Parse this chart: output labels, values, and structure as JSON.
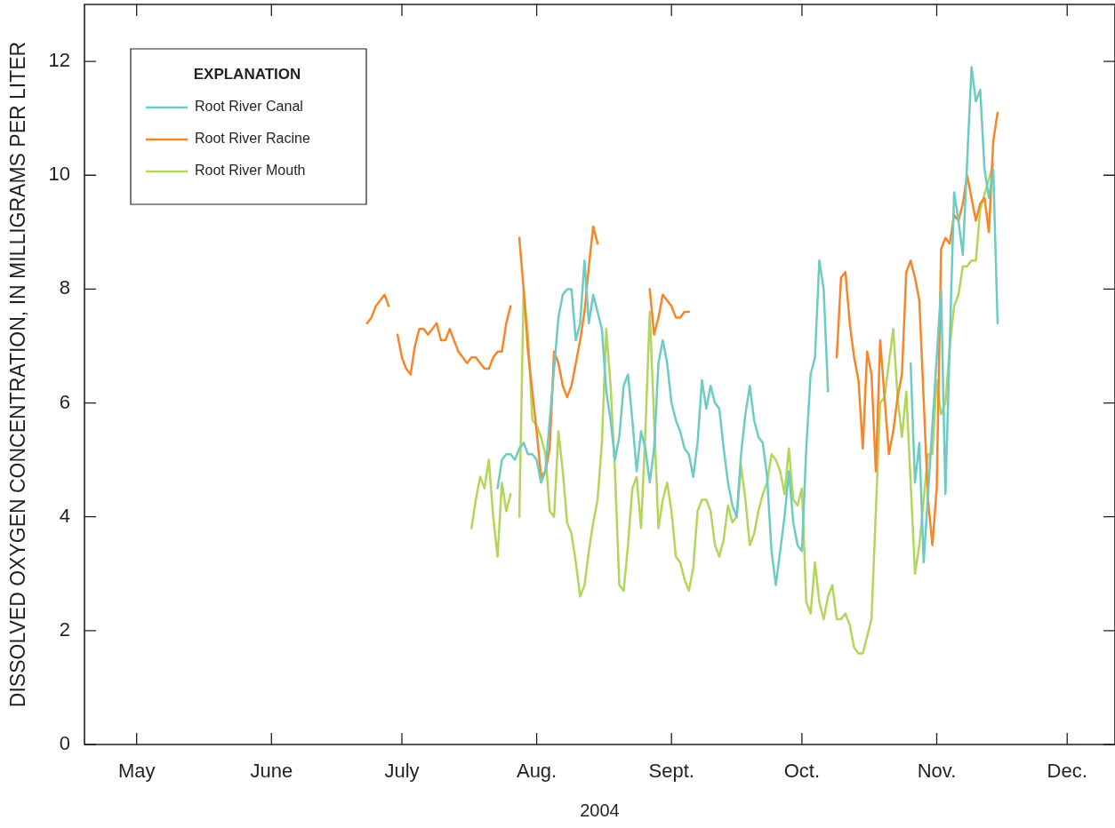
{
  "chart_data": {
    "type": "line",
    "xlabel": "2004",
    "ylabel": "DISSOLVED OXYGEN CONCENTRATION, IN MILLIGRAMS PER LITER",
    "legend": "top left",
    "legend_title": "EXPLANATION",
    "xlim": [
      "2004-04-19",
      "2004-12-12"
    ],
    "xticks": [
      {
        "value": "2004-05-01",
        "label": "May"
      },
      {
        "value": "2004-06-01",
        "label": "June"
      },
      {
        "value": "2004-07-01",
        "label": "July"
      },
      {
        "value": "2004-08-01",
        "label": "Aug."
      },
      {
        "value": "2004-09-01",
        "label": "Sept."
      },
      {
        "value": "2004-10-01",
        "label": "Oct."
      },
      {
        "value": "2004-11-01",
        "label": "Nov."
      },
      {
        "value": "2004-12-01",
        "label": "Dec."
      }
    ],
    "ylim": [
      0,
      13
    ],
    "yticks": [
      0,
      2,
      4,
      6,
      8,
      10,
      12
    ],
    "series": [
      {
        "name": "Root River Canal",
        "color": "#6dcbc3",
        "x": [
          "2004-07-23",
          "2004-07-24",
          "2004-07-25",
          "2004-07-26",
          "2004-07-27",
          "2004-07-28",
          "2004-07-29",
          "2004-07-30",
          "2004-07-31",
          "2004-08-01",
          "2004-08-02",
          "2004-08-03",
          "2004-08-06",
          "2004-08-07",
          "2004-08-08",
          "2004-08-09",
          "2004-08-10",
          "2004-08-11",
          "2004-08-12",
          "2004-08-13",
          "2004-08-14",
          "2004-08-15",
          "2004-08-16",
          "2004-08-17",
          "2004-08-18",
          "2004-08-19",
          "2004-08-20",
          "2004-08-21",
          "2004-08-22",
          "2004-08-23",
          "2004-08-24",
          "2004-08-25",
          "2004-08-26",
          "2004-08-27",
          "2004-08-28",
          "2004-08-29",
          "2004-08-30",
          "2004-08-31",
          "2004-09-01",
          "2004-09-02",
          "2004-09-03",
          "2004-09-04",
          "2004-09-05",
          "2004-09-06",
          "2004-09-07",
          "2004-09-08",
          "2004-09-09",
          "2004-09-10",
          "2004-09-11",
          "2004-09-12",
          "2004-09-13",
          "2004-09-14",
          "2004-09-15",
          "2004-09-16",
          "2004-09-17",
          "2004-09-18",
          "2004-09-19",
          "2004-09-20",
          "2004-09-21",
          "2004-09-22",
          "2004-09-23",
          "2004-09-24",
          "2004-09-25",
          "2004-09-26",
          "2004-09-27",
          "2004-09-28",
          "2004-09-29",
          "2004-09-30",
          "2004-10-01",
          "2004-10-02",
          "2004-10-03",
          "2004-10-04",
          "2004-10-05",
          "2004-10-06",
          "2004-10-07",
          "2004-10-08",
          "2004-10-26",
          "2004-10-27",
          "2004-10-28",
          "2004-10-29",
          "2004-11-02",
          "2004-11-03",
          "2004-11-05",
          "2004-11-06",
          "2004-11-07",
          "2004-11-09",
          "2004-11-10",
          "2004-11-11",
          "2004-11-12",
          "2004-11-13",
          "2004-11-14",
          "2004-11-15"
        ],
        "values": [
          4.5,
          5.0,
          5.1,
          5.1,
          5.0,
          5.2,
          5.3,
          5.1,
          5.1,
          5.0,
          4.6,
          4.8,
          7.5,
          7.9,
          8.0,
          8.0,
          7.1,
          7.4,
          8.5,
          7.4,
          7.9,
          7.6,
          7.3,
          6.2,
          5.7,
          5.0,
          5.4,
          6.3,
          6.5,
          5.7,
          4.8,
          5.5,
          5.2,
          4.6,
          5.2,
          6.7,
          7.1,
          6.7,
          6.0,
          5.7,
          5.5,
          5.2,
          5.1,
          4.7,
          5.3,
          6.4,
          5.9,
          6.3,
          6.0,
          5.9,
          5.2,
          4.6,
          4.2,
          4.0,
          5.1,
          5.8,
          6.3,
          5.7,
          5.4,
          5.3,
          4.7,
          3.4,
          2.8,
          3.4,
          4.0,
          4.8,
          3.9,
          3.5,
          3.4,
          5.2,
          6.5,
          6.8,
          8.5,
          8.0,
          6.2,
          null,
          6.7,
          4.6,
          5.3,
          3.2,
          8.0,
          4.4,
          9.7,
          9.2,
          8.6,
          11.9,
          11.3,
          11.5,
          10.1,
          9.6,
          10.1,
          7.4
        ]
      },
      {
        "name": "Root River Racine",
        "color": "#f5862a",
        "x": [
          "2004-06-23",
          "2004-06-24",
          "2004-06-25",
          "2004-06-26",
          "2004-06-27",
          "2004-06-28",
          "2004-06-29",
          "2004-06-30",
          "2004-07-01",
          "2004-07-02",
          "2004-07-03",
          "2004-07-04",
          "2004-07-05",
          "2004-07-06",
          "2004-07-07",
          "2004-07-08",
          "2004-07-09",
          "2004-07-10",
          "2004-07-11",
          "2004-07-12",
          "2004-07-13",
          "2004-07-14",
          "2004-07-15",
          "2004-07-16",
          "2004-07-17",
          "2004-07-18",
          "2004-07-19",
          "2004-07-20",
          "2004-07-21",
          "2004-07-22",
          "2004-07-23",
          "2004-07-24",
          "2004-07-25",
          "2004-07-26",
          "2004-07-27",
          "2004-07-28",
          "2004-07-29",
          "2004-07-30",
          "2004-07-31",
          "2004-08-01",
          "2004-08-02",
          "2004-08-03",
          "2004-08-04",
          "2004-08-05",
          "2004-08-06",
          "2004-08-07",
          "2004-08-08",
          "2004-08-09",
          "2004-08-10",
          "2004-08-11",
          "2004-08-12",
          "2004-08-13",
          "2004-08-14",
          "2004-08-15",
          "2004-08-16",
          "2004-08-27",
          "2004-08-28",
          "2004-08-29",
          "2004-08-30",
          "2004-08-31",
          "2004-09-01",
          "2004-09-02",
          "2004-09-03",
          "2004-09-04",
          "2004-09-05",
          "2004-09-06",
          "2004-10-09",
          "2004-10-10",
          "2004-10-11",
          "2004-10-12",
          "2004-10-13",
          "2004-10-14",
          "2004-10-15",
          "2004-10-16",
          "2004-10-17",
          "2004-10-18",
          "2004-10-19",
          "2004-10-21",
          "2004-10-22",
          "2004-10-23",
          "2004-10-24",
          "2004-10-25",
          "2004-10-26",
          "2004-10-27",
          "2004-10-28",
          "2004-10-30",
          "2004-10-31",
          "2004-11-01",
          "2004-11-02",
          "2004-11-03",
          "2004-11-04",
          "2004-11-05",
          "2004-11-06",
          "2004-11-07",
          "2004-11-08",
          "2004-11-09",
          "2004-11-10",
          "2004-11-11",
          "2004-11-12",
          "2004-11-13",
          "2004-11-14",
          "2004-11-15"
        ],
        "values": [
          7.4,
          7.5,
          7.7,
          7.8,
          7.9,
          7.7,
          null,
          7.2,
          6.8,
          6.6,
          6.5,
          7.0,
          7.3,
          7.3,
          7.2,
          7.3,
          7.4,
          7.1,
          7.1,
          7.3,
          7.1,
          6.9,
          6.8,
          6.7,
          6.8,
          6.8,
          6.7,
          6.6,
          6.6,
          6.8,
          6.9,
          6.9,
          7.4,
          7.7,
          null,
          8.9,
          8.0,
          6.9,
          6.2,
          5.5,
          4.7,
          4.8,
          5.2,
          6.9,
          6.7,
          6.3,
          6.1,
          6.3,
          6.7,
          7.1,
          7.6,
          8.4,
          9.1,
          8.8,
          null,
          8.0,
          7.2,
          7.5,
          7.9,
          7.8,
          7.7,
          7.5,
          7.5,
          7.6,
          7.6,
          null,
          6.8,
          8.2,
          8.3,
          7.4,
          6.8,
          6.4,
          5.2,
          6.9,
          6.5,
          4.8,
          7.1,
          5.1,
          5.5,
          6.1,
          6.5,
          8.3,
          8.5,
          8.2,
          7.8,
          4.3,
          3.5,
          4.5,
          8.7,
          8.9,
          8.8,
          9.3,
          9.2,
          9.5,
          10.0,
          9.6,
          9.2,
          9.5,
          9.6,
          9.0,
          10.6,
          11.1
        ]
      },
      {
        "name": "Root River Mouth",
        "color": "#b2d65a",
        "x": [
          "2004-07-17",
          "2004-07-18",
          "2004-07-19",
          "2004-07-20",
          "2004-07-21",
          "2004-07-22",
          "2004-07-23",
          "2004-07-24",
          "2004-07-25",
          "2004-07-26",
          "2004-07-27",
          "2004-07-28",
          "2004-07-29",
          "2004-07-30",
          "2004-07-31",
          "2004-08-01",
          "2004-08-02",
          "2004-08-03",
          "2004-08-04",
          "2004-08-05",
          "2004-08-06",
          "2004-08-07",
          "2004-08-08",
          "2004-08-09",
          "2004-08-10",
          "2004-08-11",
          "2004-08-12",
          "2004-08-13",
          "2004-08-14",
          "2004-08-15",
          "2004-08-16",
          "2004-08-17",
          "2004-08-18",
          "2004-08-19",
          "2004-08-20",
          "2004-08-21",
          "2004-08-22",
          "2004-08-23",
          "2004-08-24",
          "2004-08-25",
          "2004-08-26",
          "2004-08-27",
          "2004-08-29",
          "2004-08-30",
          "2004-08-31",
          "2004-09-01",
          "2004-09-02",
          "2004-09-03",
          "2004-09-04",
          "2004-09-05",
          "2004-09-06",
          "2004-09-07",
          "2004-09-08",
          "2004-09-09",
          "2004-09-10",
          "2004-09-11",
          "2004-09-12",
          "2004-09-13",
          "2004-09-14",
          "2004-09-15",
          "2004-09-16",
          "2004-09-17",
          "2004-09-18",
          "2004-09-19",
          "2004-09-20",
          "2004-09-21",
          "2004-09-22",
          "2004-09-23",
          "2004-09-24",
          "2004-09-25",
          "2004-09-26",
          "2004-09-27",
          "2004-09-28",
          "2004-09-29",
          "2004-09-30",
          "2004-10-01",
          "2004-10-02",
          "2004-10-03",
          "2004-10-04",
          "2004-10-05",
          "2004-10-06",
          "2004-10-07",
          "2004-10-08",
          "2004-10-09",
          "2004-10-10",
          "2004-10-11",
          "2004-10-12",
          "2004-10-13",
          "2004-10-14",
          "2004-10-15",
          "2004-10-16",
          "2004-10-17",
          "2004-10-19",
          "2004-10-20",
          "2004-10-21",
          "2004-10-22",
          "2004-10-23",
          "2004-10-24",
          "2004-10-25",
          "2004-10-27",
          "2004-10-28",
          "2004-10-30",
          "2004-10-31",
          "2004-11-01",
          "2004-11-02",
          "2004-11-03",
          "2004-11-04",
          "2004-11-05",
          "2004-11-06",
          "2004-11-07",
          "2004-11-08",
          "2004-11-09",
          "2004-11-10",
          "2004-11-11",
          "2004-11-14"
        ],
        "values": [
          3.8,
          4.3,
          4.7,
          4.5,
          5.0,
          4.0,
          3.3,
          4.6,
          4.1,
          4.4,
          null,
          4.0,
          8.0,
          7.2,
          5.7,
          5.6,
          5.4,
          5.1,
          4.1,
          4.0,
          5.5,
          4.8,
          3.9,
          3.7,
          3.2,
          2.6,
          2.8,
          3.4,
          3.9,
          4.3,
          5.3,
          7.3,
          6.3,
          4.8,
          2.8,
          2.7,
          3.5,
          4.5,
          4.7,
          3.8,
          5.5,
          7.6,
          3.8,
          4.3,
          4.6,
          4.1,
          3.3,
          3.2,
          2.9,
          2.7,
          3.1,
          4.1,
          4.3,
          4.3,
          4.1,
          3.5,
          3.3,
          3.6,
          4.2,
          3.9,
          4.0,
          4.9,
          4.3,
          3.5,
          3.7,
          4.1,
          4.4,
          4.6,
          5.1,
          5.0,
          4.8,
          4.4,
          5.2,
          4.3,
          4.2,
          4.5,
          2.5,
          2.3,
          3.2,
          2.5,
          2.2,
          2.6,
          2.8,
          2.2,
          2.2,
          2.3,
          2.1,
          1.7,
          1.6,
          1.6,
          1.9,
          2.2,
          6.0,
          6.1,
          6.7,
          7.3,
          6.1,
          5.4,
          6.2,
          3.0,
          3.5,
          5.1,
          5.1,
          6.4,
          5.8,
          6.0,
          7.0,
          7.7,
          7.9,
          8.4,
          8.4,
          8.5,
          8.5,
          9.4,
          10.2
        ]
      }
    ]
  }
}
